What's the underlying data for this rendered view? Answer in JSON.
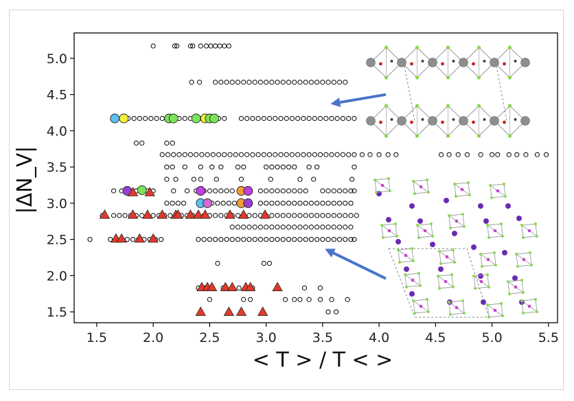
{
  "chart_data": {
    "type": "scatter",
    "xlabel": "< T > / T < >",
    "ylabel": "|ΔN_V|",
    "xlim": [
      1.3,
      5.58
    ],
    "ylim": [
      1.35,
      5.35
    ],
    "x_ticks": [
      "1.5",
      "2.0",
      "2.5",
      "3.0",
      "3.5",
      "4.0",
      "4.5",
      "5.0",
      "5.5"
    ],
    "y_ticks": [
      "1.5",
      "2.0",
      "2.5",
      "3.0",
      "3.5",
      "4.0",
      "4.5",
      "5.0"
    ],
    "grid": false,
    "legend": "none",
    "series": [
      {
        "marker": "open-circle",
        "color": "#000000",
        "rows": [
          {
            "y": 5.17,
            "x": [
              2.0,
              2.19,
              2.21,
              2.33,
              2.35,
              2.42,
              2.47,
              2.51,
              2.55,
              2.59,
              2.63,
              2.67
            ]
          },
          {
            "y": 4.67,
            "x": [
              2.34,
              2.41,
              2.55,
              2.6,
              2.65,
              2.7,
              2.75,
              2.8,
              2.85,
              2.9,
              2.95,
              3.0,
              3.05,
              3.1,
              3.15,
              3.2,
              3.25,
              3.3,
              3.35,
              3.4,
              3.45,
              3.5,
              3.55,
              3.6,
              3.65,
              3.7
            ]
          },
          {
            "y": 4.17,
            "x": [
              1.78,
              1.83,
              1.88,
              1.93,
              1.98,
              2.03,
              2.08,
              2.13,
              2.18,
              2.23,
              2.28,
              2.33,
              2.38,
              2.43,
              2.48,
              2.53,
              2.58,
              2.63,
              2.78,
              2.83,
              2.88,
              2.93,
              2.98,
              3.03,
              3.08,
              3.13,
              3.18,
              3.23,
              3.28,
              3.33,
              3.38,
              3.43,
              3.48,
              3.53,
              3.58,
              3.63,
              3.68,
              3.73,
              3.78
            ]
          },
          {
            "y": 3.83,
            "x": [
              1.85,
              1.9,
              2.12,
              2.17
            ]
          },
          {
            "y": 3.67,
            "x": [
              2.08,
              2.13,
              2.18,
              2.23,
              2.28,
              2.33,
              2.38,
              2.43,
              2.48,
              2.53,
              2.58,
              2.63,
              2.68,
              2.73,
              2.78,
              2.83,
              2.88,
              2.93,
              2.98,
              3.03,
              3.08,
              3.13,
              3.18,
              3.23,
              3.28,
              3.33,
              3.38,
              3.43,
              3.48,
              3.53,
              3.58,
              3.63,
              3.68,
              3.73,
              3.78,
              3.85,
              3.92,
              4.0,
              4.08,
              4.15,
              4.55,
              4.62,
              4.7,
              4.78,
              4.9,
              5.0,
              5.05,
              5.15,
              5.22,
              5.3,
              5.4,
              5.48
            ]
          },
          {
            "y": 3.5,
            "x": [
              2.12,
              2.17,
              2.28,
              2.42,
              2.52,
              2.6,
              2.75,
              2.8,
              3.0,
              3.05,
              3.1,
              3.15,
              3.2,
              3.25,
              3.38,
              3.45,
              3.78
            ]
          },
          {
            "y": 3.33,
            "x": [
              2.12,
              2.2,
              2.36,
              2.42,
              2.56,
              2.78,
              3.04,
              3.3,
              3.42,
              3.76
            ]
          },
          {
            "y": 3.17,
            "x": [
              1.65,
              1.72,
              1.85,
              1.9,
              1.95,
              2.0,
              2.18,
              2.3,
              2.38,
              2.45,
              2.5,
              2.55,
              2.6,
              2.65,
              2.7,
              2.95,
              3.0,
              3.05,
              3.1,
              3.15,
              3.2,
              3.25,
              3.3,
              3.35,
              3.5,
              3.55,
              3.6,
              3.65,
              3.7,
              3.75,
              3.78
            ]
          },
          {
            "y": 3.0,
            "x": [
              2.12,
              2.17,
              2.22,
              2.27,
              2.52,
              2.57,
              2.62,
              2.67,
              2.72,
              2.95,
              3.0,
              3.05,
              3.1,
              3.15,
              3.2,
              3.25,
              3.3,
              3.35,
              3.4,
              3.45,
              3.5,
              3.55,
              3.6,
              3.65,
              3.7,
              3.75
            ]
          },
          {
            "y": 2.83,
            "x": [
              1.55,
              1.65,
              1.7,
              1.75,
              1.8,
              1.85,
              1.9,
              1.95,
              2.0,
              2.05,
              2.1,
              2.15,
              2.2,
              2.25,
              2.3,
              2.35,
              2.4,
              2.45,
              2.5,
              2.55,
              2.6,
              2.65,
              2.7,
              2.75,
              2.8,
              2.85,
              2.9,
              2.95,
              3.0,
              3.05,
              3.1,
              3.15,
              3.2,
              3.25,
              3.3,
              3.35,
              3.4,
              3.45,
              3.5,
              3.55,
              3.6,
              3.65,
              3.7,
              3.75,
              3.8
            ]
          },
          {
            "y": 2.67,
            "x": [
              2.7,
              2.75,
              2.8,
              2.85,
              2.9,
              2.95,
              3.0,
              3.05,
              3.1,
              3.15,
              3.2,
              3.25,
              3.3,
              3.35,
              3.4,
              3.45,
              3.5,
              3.55,
              3.6,
              3.65,
              3.7,
              3.75
            ]
          },
          {
            "y": 2.5,
            "x": [
              1.44,
              1.62,
              1.67,
              1.72,
              1.77,
              1.82,
              1.87,
              1.92,
              1.97,
              2.02,
              2.07,
              2.4,
              2.45,
              2.5,
              2.55,
              2.6,
              2.65,
              2.7,
              2.75,
              2.8,
              2.85,
              2.9,
              2.95,
              3.0,
              3.05,
              3.1,
              3.15,
              3.2,
              3.25,
              3.3,
              3.35,
              3.4,
              3.45,
              3.5,
              3.55,
              3.6,
              3.65,
              3.7,
              3.75,
              3.78
            ]
          },
          {
            "y": 2.17,
            "x": [
              2.57,
              2.98,
              3.03
            ]
          },
          {
            "y": 1.83,
            "x": [
              2.4,
              2.45,
              2.5,
              2.62,
              2.7,
              2.76,
              2.82,
              2.88,
              3.34,
              3.48
            ]
          },
          {
            "y": 1.67,
            "x": [
              2.5,
              2.8,
              2.86,
              3.17,
              3.25,
              3.3,
              3.38,
              3.48,
              3.58,
              3.72
            ]
          },
          {
            "y": 1.5,
            "x": [
              3.55,
              3.62
            ]
          }
        ]
      },
      {
        "marker": "filled-circle",
        "points": [
          {
            "x": 1.66,
            "y": 4.17,
            "color": "#5bc0f0"
          },
          {
            "x": 1.74,
            "y": 4.17,
            "color": "#f7ef3b"
          },
          {
            "x": 2.14,
            "y": 4.17,
            "color": "#7ee35c"
          },
          {
            "x": 2.18,
            "y": 4.17,
            "color": "#7ee35c"
          },
          {
            "x": 2.38,
            "y": 4.17,
            "color": "#7ee35c"
          },
          {
            "x": 2.46,
            "y": 4.17,
            "color": "#f7ef3b"
          },
          {
            "x": 2.5,
            "y": 4.17,
            "color": "#7ee35c"
          },
          {
            "x": 2.54,
            "y": 4.17,
            "color": "#7ee35c"
          },
          {
            "x": 1.77,
            "y": 3.17,
            "color": "#9b3fd3"
          },
          {
            "x": 1.9,
            "y": 3.18,
            "color": "#7ee35c"
          },
          {
            "x": 2.42,
            "y": 3.17,
            "color": "#c23fe0"
          },
          {
            "x": 2.78,
            "y": 3.17,
            "color": "#f0a033"
          },
          {
            "x": 2.84,
            "y": 3.17,
            "color": "#c23fe0"
          },
          {
            "x": 2.42,
            "y": 3.0,
            "color": "#5bc0f0"
          },
          {
            "x": 2.48,
            "y": 3.0,
            "color": "#d06bd8"
          },
          {
            "x": 2.78,
            "y": 3.0,
            "color": "#f0a033"
          },
          {
            "x": 2.84,
            "y": 3.0,
            "color": "#9b3fd3"
          }
        ]
      },
      {
        "marker": "triangle",
        "color": "#e03a2a",
        "points": [
          {
            "x": 1.97,
            "y": 3.15
          },
          {
            "x": 1.82,
            "y": 3.15
          },
          {
            "x": 1.57,
            "y": 2.84
          },
          {
            "x": 1.82,
            "y": 2.84
          },
          {
            "x": 1.95,
            "y": 2.84
          },
          {
            "x": 2.08,
            "y": 2.84
          },
          {
            "x": 2.2,
            "y": 2.84
          },
          {
            "x": 2.22,
            "y": 2.84
          },
          {
            "x": 2.33,
            "y": 2.84
          },
          {
            "x": 2.4,
            "y": 2.84
          },
          {
            "x": 2.46,
            "y": 2.84
          },
          {
            "x": 2.68,
            "y": 2.84
          },
          {
            "x": 2.8,
            "y": 2.84
          },
          {
            "x": 2.99,
            "y": 2.84
          },
          {
            "x": 1.67,
            "y": 2.51
          },
          {
            "x": 1.72,
            "y": 2.51
          },
          {
            "x": 1.88,
            "y": 2.51
          },
          {
            "x": 2.0,
            "y": 2.51
          },
          {
            "x": 2.43,
            "y": 1.84
          },
          {
            "x": 2.48,
            "y": 1.84
          },
          {
            "x": 2.52,
            "y": 1.84
          },
          {
            "x": 2.64,
            "y": 1.84
          },
          {
            "x": 2.7,
            "y": 1.84
          },
          {
            "x": 2.82,
            "y": 1.84
          },
          {
            "x": 2.86,
            "y": 1.84
          },
          {
            "x": 3.1,
            "y": 1.84
          },
          {
            "x": 2.42,
            "y": 1.5
          },
          {
            "x": 2.67,
            "y": 1.5
          },
          {
            "x": 2.78,
            "y": 1.5
          },
          {
            "x": 2.97,
            "y": 1.5
          }
        ]
      }
    ],
    "annotations": [
      {
        "type": "arrow",
        "color": "#4a74c9",
        "from": [
          4.06,
          4.5
        ],
        "to": [
          3.57,
          4.37
        ]
      },
      {
        "type": "arrow",
        "color": "#4a74c9",
        "from": [
          4.06,
          1.96
        ],
        "to": [
          3.52,
          2.37
        ]
      }
    ]
  },
  "insets": {
    "top_structure": {
      "atom_colors": {
        "large": "#8e8e8e",
        "small_red": "#cc2222",
        "dark": "#444444",
        "ligand": "#8ad84a"
      }
    },
    "bottom_structure": {
      "atom_colors": {
        "large": "#6a2bb3",
        "magenta": "#c93fd0",
        "ligand": "#8ad84a"
      }
    }
  }
}
